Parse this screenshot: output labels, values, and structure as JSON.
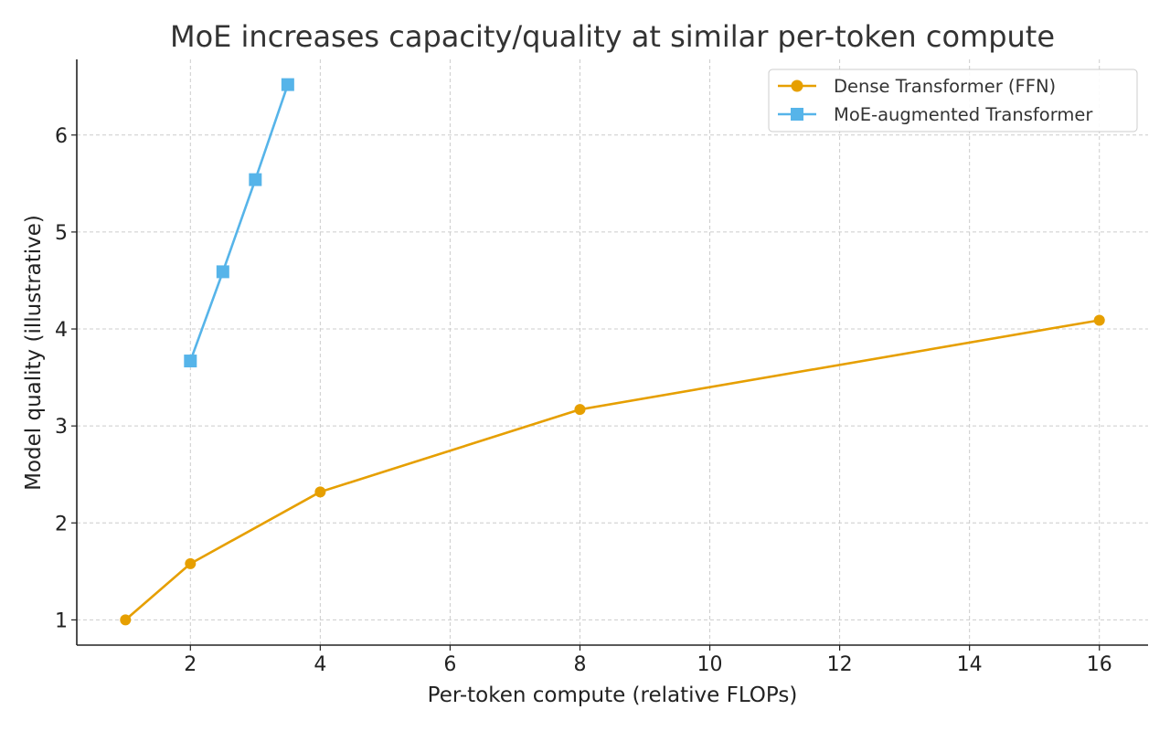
{
  "chart_data": {
    "type": "line",
    "title": "MoE increases capacity/quality at similar per-token compute",
    "xlabel": "Per-token compute (relative FLOPs)",
    "ylabel": "Model quality (illustrative)",
    "xlim": [
      0.25,
      16.75
    ],
    "ylim": [
      0.74,
      6.78
    ],
    "xticks": [
      2,
      4,
      6,
      8,
      10,
      12,
      14,
      16
    ],
    "yticks": [
      1,
      2,
      3,
      4,
      5,
      6
    ],
    "grid": true,
    "legend_position": "top-right",
    "series": [
      {
        "name": "Dense Transformer (FFN)",
        "color": "#E69F00",
        "marker": "circle",
        "x": [
          1,
          2,
          4,
          8,
          16
        ],
        "y": [
          1.0,
          1.58,
          2.32,
          3.17,
          4.09
        ]
      },
      {
        "name": "MoE-augmented Transformer",
        "color": "#56B4E9",
        "marker": "square",
        "x": [
          2,
          2.5,
          3,
          3.5
        ],
        "y": [
          3.67,
          4.59,
          5.54,
          6.52
        ]
      }
    ]
  }
}
